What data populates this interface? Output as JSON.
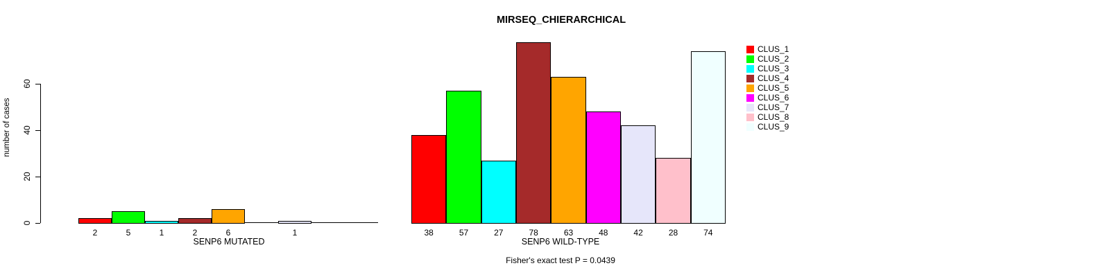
{
  "chart_data": {
    "type": "bar",
    "title": "MIRSEQ_CHIERARCHICAL",
    "ylabel": "number of cases",
    "yticks": [
      0,
      20,
      40,
      60
    ],
    "ylim": [
      0,
      84
    ],
    "grid": false,
    "legend_position": "top-right",
    "clusters": [
      {
        "name": "CLUS_1",
        "color": "#FF0000"
      },
      {
        "name": "CLUS_2",
        "color": "#00FF00"
      },
      {
        "name": "CLUS_3",
        "color": "#00FFFF"
      },
      {
        "name": "CLUS_4",
        "color": "#A52A2A"
      },
      {
        "name": "CLUS_5",
        "color": "#FFA500"
      },
      {
        "name": "CLUS_6",
        "color": "#FF00FF"
      },
      {
        "name": "CLUS_7",
        "color": "#E6E6FA"
      },
      {
        "name": "CLUS_8",
        "color": "#FFC0CB"
      },
      {
        "name": "CLUS_9",
        "color": "#F0FFFF"
      }
    ],
    "panels": [
      {
        "xlabel": "SENP6 MUTATED",
        "values": [
          2,
          5,
          1,
          2,
          6,
          0,
          1,
          0,
          0
        ],
        "hide_zero_labels": true
      },
      {
        "xlabel": "SENP6 WILD-TYPE",
        "values": [
          38,
          57,
          27,
          78,
          63,
          48,
          42,
          28,
          74
        ],
        "hide_zero_labels": true
      }
    ],
    "caption": "Fisher's exact test P = 0.0439"
  }
}
